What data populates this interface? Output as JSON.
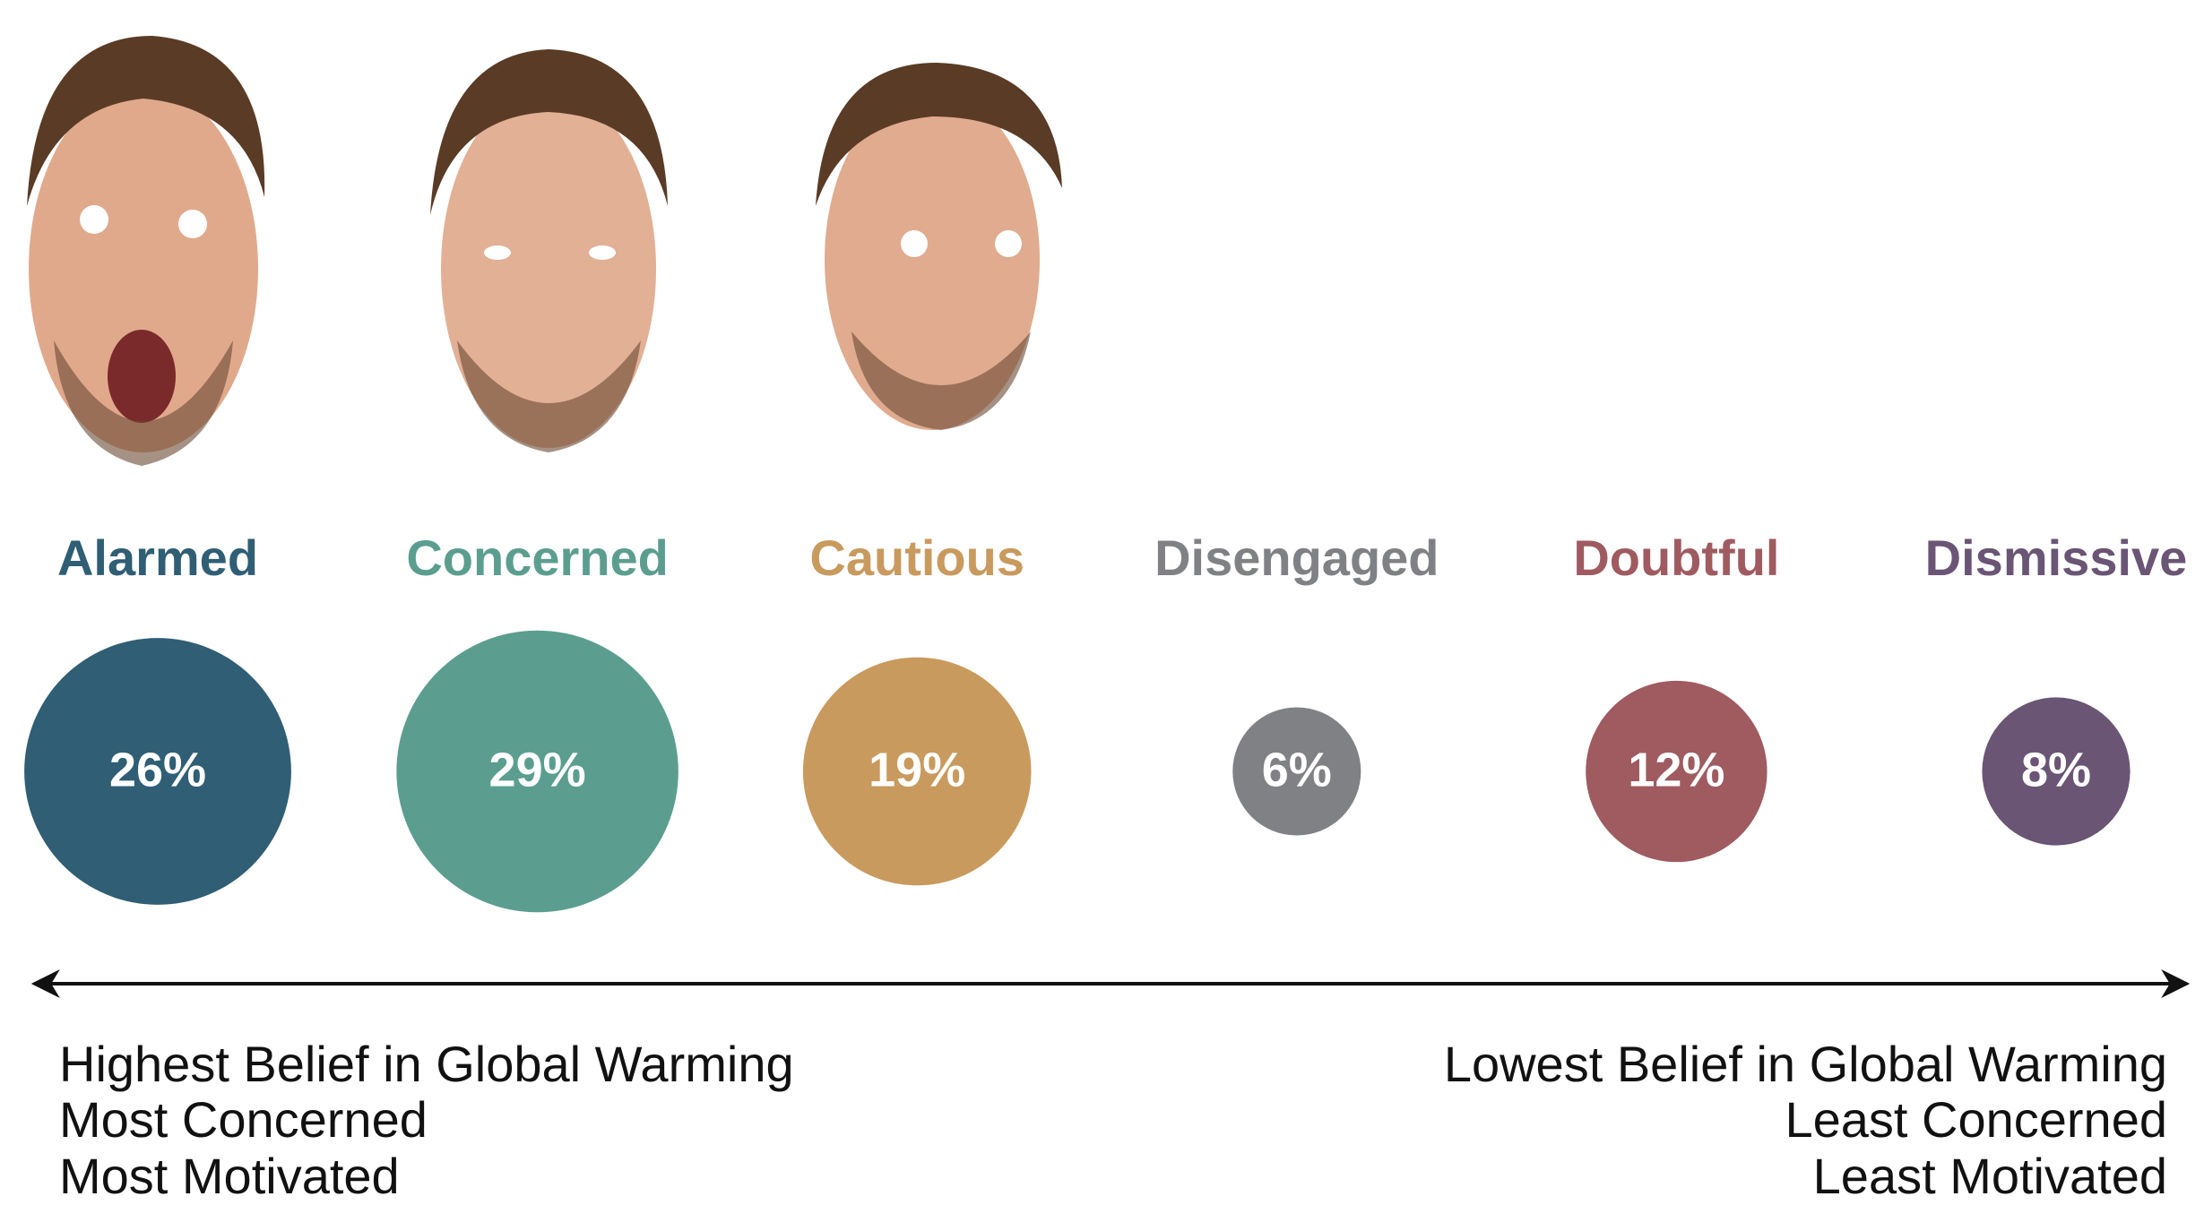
{
  "chart_data": {
    "type": "bubble",
    "categories": [
      "Alarmed",
      "Concerned",
      "Cautious",
      "Disengaged",
      "Doubtful",
      "Dismissive"
    ],
    "values": [
      26,
      29,
      19,
      6,
      12,
      8
    ],
    "value_labels": [
      "26%",
      "29%",
      "19%",
      "6%",
      "12%",
      "8%"
    ],
    "colors": [
      "#2f5e75",
      "#5b9e8f",
      "#c99a5e",
      "#808184",
      "#9f5b60",
      "#6a5575"
    ],
    "annotations": {
      "left": [
        "Highest Belief in Global Warming",
        "Most Concerned",
        "Most Motivated"
      ],
      "right": [
        "Lowest Belief in Global Warming",
        "Least Concerned",
        "Least Motivated"
      ]
    }
  }
}
